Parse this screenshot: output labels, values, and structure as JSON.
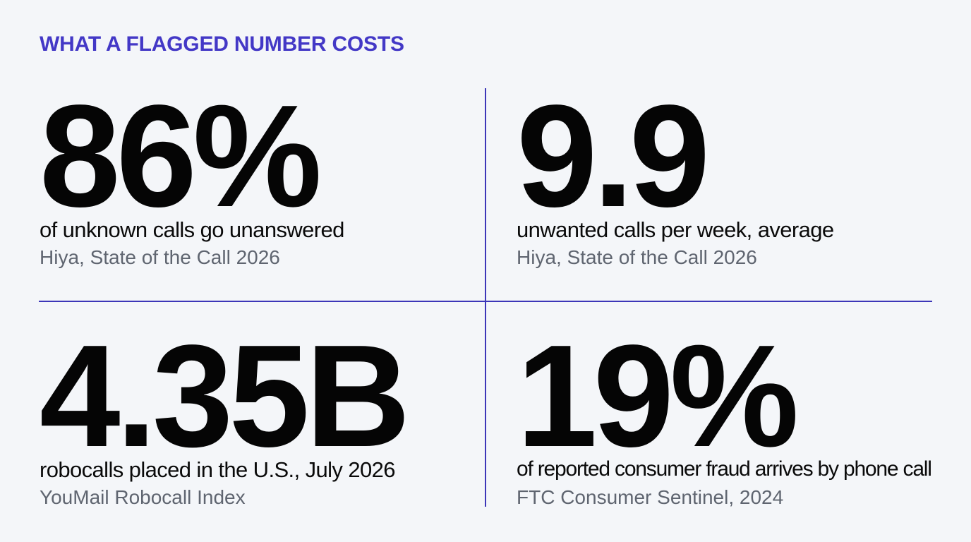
{
  "headline": "WHAT A FLAGGED NUMBER COSTS",
  "stats": [
    {
      "value": "86%",
      "label": "of unknown calls go unanswered",
      "source": "Hiya, State of the Call 2026"
    },
    {
      "value": "9.9",
      "label": "unwanted calls per week, average",
      "source": "Hiya, State of the Call 2026"
    },
    {
      "value": "4.35B",
      "label": "robocalls placed in the U.S., July 2026",
      "source": "YouMail Robocall Index"
    },
    {
      "value": "19%",
      "label": "of reported consumer fraud arrives by phone call",
      "source": "FTC Consumer Sentinel, 2024"
    }
  ],
  "colors": {
    "accent": "#4338c6",
    "divider": "#3c36b8",
    "background": "#f4f6f9",
    "value_text": "#050505",
    "source_text": "#5f6570"
  }
}
